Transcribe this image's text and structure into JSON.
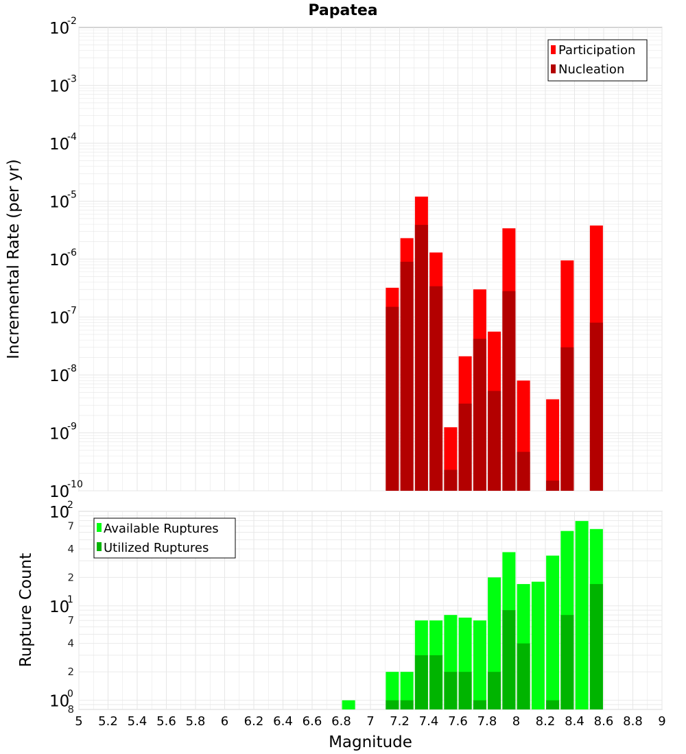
{
  "chart_data": [
    {
      "type": "bar",
      "title": "Papatea",
      "ylabel": "Incremental Rate (per yr)",
      "yscale": "log",
      "ylim": [
        1e-10,
        0.01
      ],
      "xlim": [
        5,
        9
      ],
      "grid": true,
      "legend_position": "top-right",
      "x": [
        7.15,
        7.25,
        7.35,
        7.45,
        7.55,
        7.65,
        7.75,
        7.85,
        7.95,
        8.05,
        8.25,
        8.35,
        8.55
      ],
      "series": [
        {
          "name": "Participation",
          "color": "#ff0000",
          "values": [
            3.2e-07,
            2.3e-06,
            1.2e-05,
            1.3e-06,
            1.25e-09,
            2.1e-08,
            3e-07,
            5.6e-08,
            3.4e-06,
            8e-09,
            3.8e-09,
            9.5e-07,
            3.8e-06
          ]
        },
        {
          "name": "Nucleation",
          "color": "#b30000",
          "values": [
            1.5e-07,
            9e-07,
            3.9e-06,
            3.4e-07,
            2.3e-10,
            3.2e-09,
            4.2e-08,
            5.3e-09,
            2.8e-07,
            4.7e-10,
            1.5e-10,
            3e-08,
            8e-08
          ]
        }
      ]
    },
    {
      "type": "bar",
      "xlabel": "Magnitude",
      "ylabel": "Rupture Count",
      "yscale": "log",
      "ylim": [
        0.8,
        100
      ],
      "xlim": [
        5,
        9
      ],
      "grid": true,
      "legend_position": "top-left",
      "x": [
        6.85,
        7.15,
        7.25,
        7.35,
        7.45,
        7.55,
        7.65,
        7.75,
        7.85,
        7.95,
        8.05,
        8.15,
        8.25,
        8.35,
        8.45,
        8.55
      ],
      "series": [
        {
          "name": "Available Ruptures",
          "color": "#00ff10",
          "values": [
            1,
            2,
            2,
            7,
            7,
            8,
            7.5,
            7,
            20,
            37,
            17,
            18,
            34,
            62,
            79,
            65
          ]
        },
        {
          "name": "Utilized Ruptures",
          "color": "#00b400",
          "values": [
            0,
            1,
            1,
            3,
            3,
            2,
            2,
            1,
            2,
            9,
            4,
            0,
            1,
            8,
            0,
            17
          ]
        }
      ]
    }
  ],
  "axes": {
    "x_ticks": [
      "5",
      "5.2",
      "5.4",
      "5.6",
      "5.8",
      "6",
      "6.2",
      "6.4",
      "6.6",
      "6.8",
      "7",
      "7.2",
      "7.4",
      "7.6",
      "7.8",
      "8",
      "8.2",
      "8.4",
      "8.6",
      "8.8",
      "9"
    ],
    "top_y_ticks": [
      {
        "base": "10",
        "exp": "-2"
      },
      {
        "base": "10",
        "exp": "-3"
      },
      {
        "base": "10",
        "exp": "-4"
      },
      {
        "base": "10",
        "exp": "-5"
      },
      {
        "base": "10",
        "exp": "-6"
      },
      {
        "base": "10",
        "exp": "-7"
      },
      {
        "base": "10",
        "exp": "-8"
      },
      {
        "base": "10",
        "exp": "-9"
      },
      {
        "base": "10",
        "exp": "-10"
      }
    ],
    "bottom_y_major": [
      {
        "base": "10",
        "exp": "2"
      },
      {
        "base": "10",
        "exp": "1"
      },
      {
        "base": "10",
        "exp": "0"
      }
    ],
    "bottom_y_minor": [
      "7",
      "4",
      "2",
      "7",
      "4",
      "2",
      "8"
    ]
  },
  "colors": {
    "grid": "#e6e6e6",
    "frame": "#aaaaaa",
    "legend_border": "#000000"
  }
}
